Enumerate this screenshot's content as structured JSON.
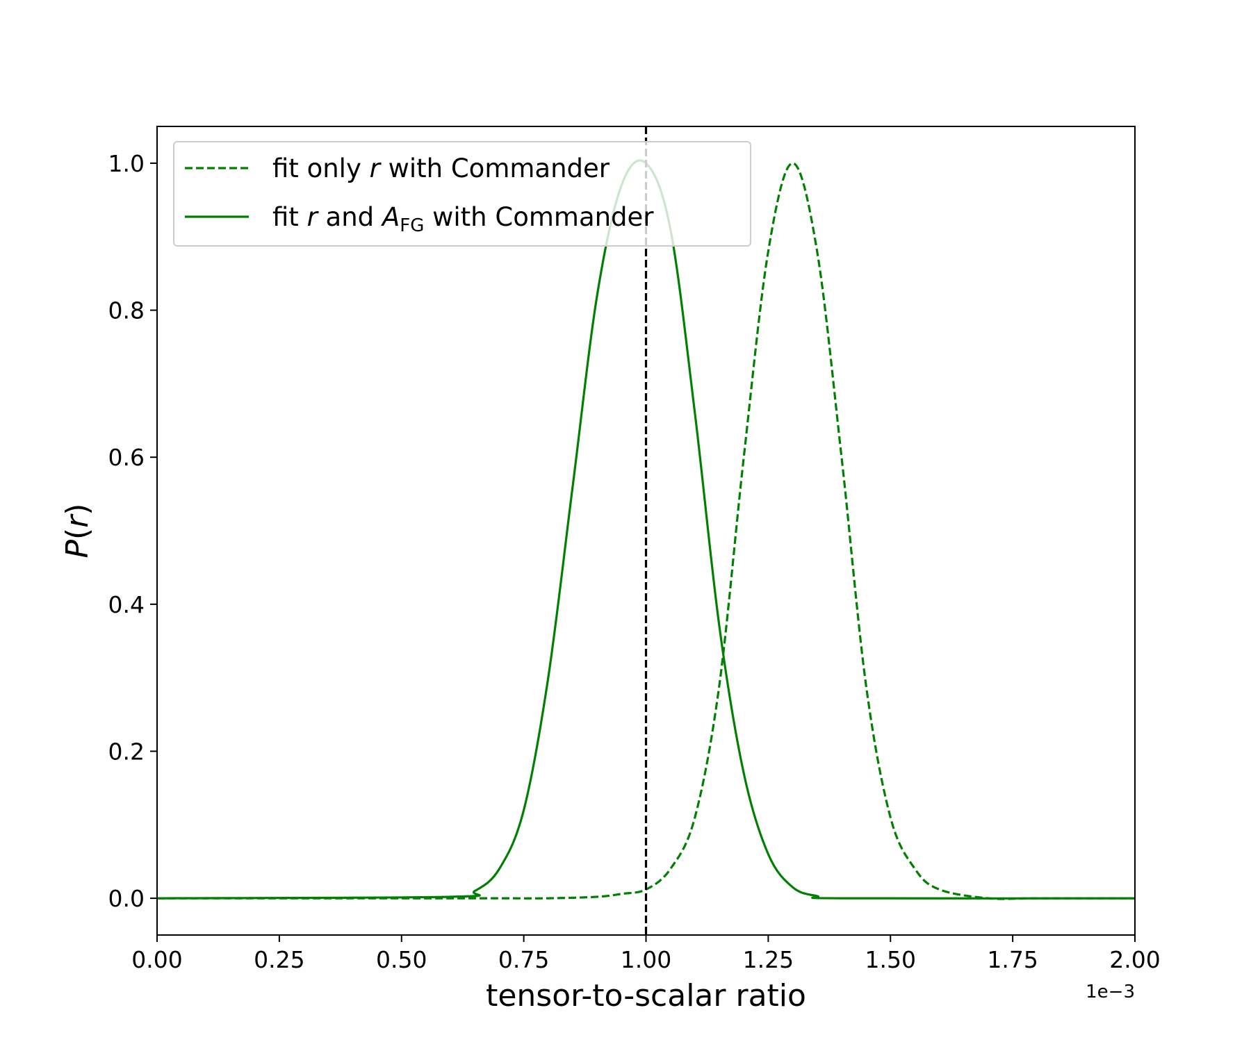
{
  "chart_data": {
    "type": "line",
    "title": "",
    "xlabel": "tensor-to-scalar ratio",
    "ylabel_symbol": "P",
    "ylabel_arg": "r",
    "x_offset_label": "1e−3",
    "xlim": [
      0.0,
      2.0
    ],
    "ylim": [
      -0.05,
      1.05
    ],
    "x_ticks": [
      {
        "value": 0.0,
        "label": "0.00"
      },
      {
        "value": 0.25,
        "label": "0.25"
      },
      {
        "value": 0.5,
        "label": "0.50"
      },
      {
        "value": 0.75,
        "label": "0.75"
      },
      {
        "value": 1.0,
        "label": "1.00"
      },
      {
        "value": 1.25,
        "label": "1.25"
      },
      {
        "value": 1.5,
        "label": "1.50"
      },
      {
        "value": 1.75,
        "label": "1.75"
      },
      {
        "value": 2.0,
        "label": "2.00"
      }
    ],
    "y_ticks": [
      {
        "value": 0.0,
        "label": "0.0"
      },
      {
        "value": 0.2,
        "label": "0.2"
      },
      {
        "value": 0.4,
        "label": "0.4"
      },
      {
        "value": 0.6,
        "label": "0.6"
      },
      {
        "value": 0.8,
        "label": "0.8"
      },
      {
        "value": 1.0,
        "label": "1.0"
      }
    ],
    "grid": false,
    "legend_position": "top-left",
    "legend": [
      {
        "series": "dashed",
        "parts": [
          "fit only ",
          "r",
          " with Commander"
        ]
      },
      {
        "series": "solid",
        "parts": [
          "fit ",
          "r",
          " and ",
          "A",
          "FG",
          " with Commander"
        ]
      }
    ],
    "reference_line": {
      "x": 1.0,
      "color": "#000000",
      "style": "dashed"
    },
    "series": [
      {
        "key": "dashed",
        "color": "#008000",
        "style": "dashed",
        "x": [
          0.0,
          0.6,
          0.7,
          0.8,
          0.9,
          0.95,
          1.0,
          1.05,
          1.1,
          1.15,
          1.2,
          1.25,
          1.3,
          1.35,
          1.4,
          1.45,
          1.5,
          1.55,
          1.6,
          1.7,
          1.8,
          2.0
        ],
        "y": [
          0.0,
          0.0,
          0.0,
          0.0,
          0.002,
          0.006,
          0.012,
          0.04,
          0.11,
          0.29,
          0.6,
          0.88,
          1.0,
          0.88,
          0.6,
          0.29,
          0.11,
          0.04,
          0.012,
          0.0,
          0.0,
          0.0
        ]
      },
      {
        "key": "solid",
        "color": "#008000",
        "style": "solid",
        "x": [
          0.0,
          0.6,
          0.65,
          0.7,
          0.75,
          0.8,
          0.85,
          0.9,
          0.95,
          1.0,
          1.05,
          1.1,
          1.15,
          1.2,
          1.25,
          1.3,
          1.35,
          1.4,
          2.0
        ],
        "y": [
          0.0,
          0.002,
          0.01,
          0.04,
          0.12,
          0.3,
          0.56,
          0.82,
          0.97,
          1.0,
          0.91,
          0.66,
          0.37,
          0.17,
          0.06,
          0.015,
          0.003,
          0.0,
          0.0
        ]
      }
    ]
  }
}
